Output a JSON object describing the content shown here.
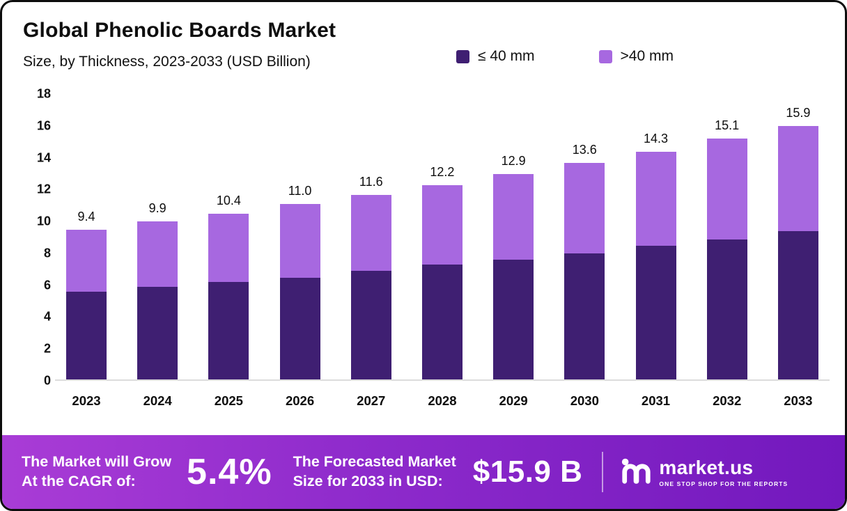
{
  "header": {
    "title": "Global Phenolic Boards Market",
    "subtitle": "Size, by Thickness, 2023-2033 (USD Billion)"
  },
  "legend": [
    {
      "label": "≤ 40 mm",
      "color": "#3f1f72"
    },
    {
      "label": ">40 mm",
      "color": "#a768e0"
    }
  ],
  "chart_data": {
    "type": "bar",
    "stacked": true,
    "title": "Global Phenolic Boards Market Size, by Thickness, 2023-2033 (USD Billion)",
    "categories": [
      "2023",
      "2024",
      "2025",
      "2026",
      "2027",
      "2028",
      "2029",
      "2030",
      "2031",
      "2032",
      "2033"
    ],
    "series": [
      {
        "name": "≤ 40 mm",
        "color": "#3f1f72",
        "values": [
          5.5,
          5.8,
          6.1,
          6.4,
          6.8,
          7.2,
          7.5,
          7.9,
          8.4,
          8.8,
          9.3
        ]
      },
      {
        "name": ">40 mm",
        "color": "#a768e0",
        "values": [
          3.9,
          4.1,
          4.3,
          4.6,
          4.8,
          5.0,
          5.4,
          5.7,
          5.9,
          6.3,
          6.6
        ]
      }
    ],
    "totals": [
      9.4,
      9.9,
      10.4,
      11.0,
      11.6,
      12.2,
      12.9,
      13.6,
      14.3,
      15.1,
      15.9
    ],
    "total_labels": [
      "9.4",
      "9.9",
      "10.4",
      "11.0",
      "11.6",
      "12.2",
      "12.9",
      "13.6",
      "14.3",
      "15.1",
      "15.9"
    ],
    "xlabel": "",
    "ylabel": "",
    "ylim": [
      0,
      18
    ],
    "yticks": [
      0,
      2,
      4,
      6,
      8,
      10,
      12,
      14,
      16,
      18
    ],
    "grid": false,
    "legend_position": "top"
  },
  "footer": {
    "cagr_label": "The Market will Grow\nAt the CAGR of:",
    "cagr_value": "5.4%",
    "forecast_label": "The Forecasted Market\nSize for 2033 in USD:",
    "forecast_value": "$15.9 B",
    "brand": "market.us",
    "brand_tagline": "ONE STOP SHOP FOR THE REPORTS"
  }
}
